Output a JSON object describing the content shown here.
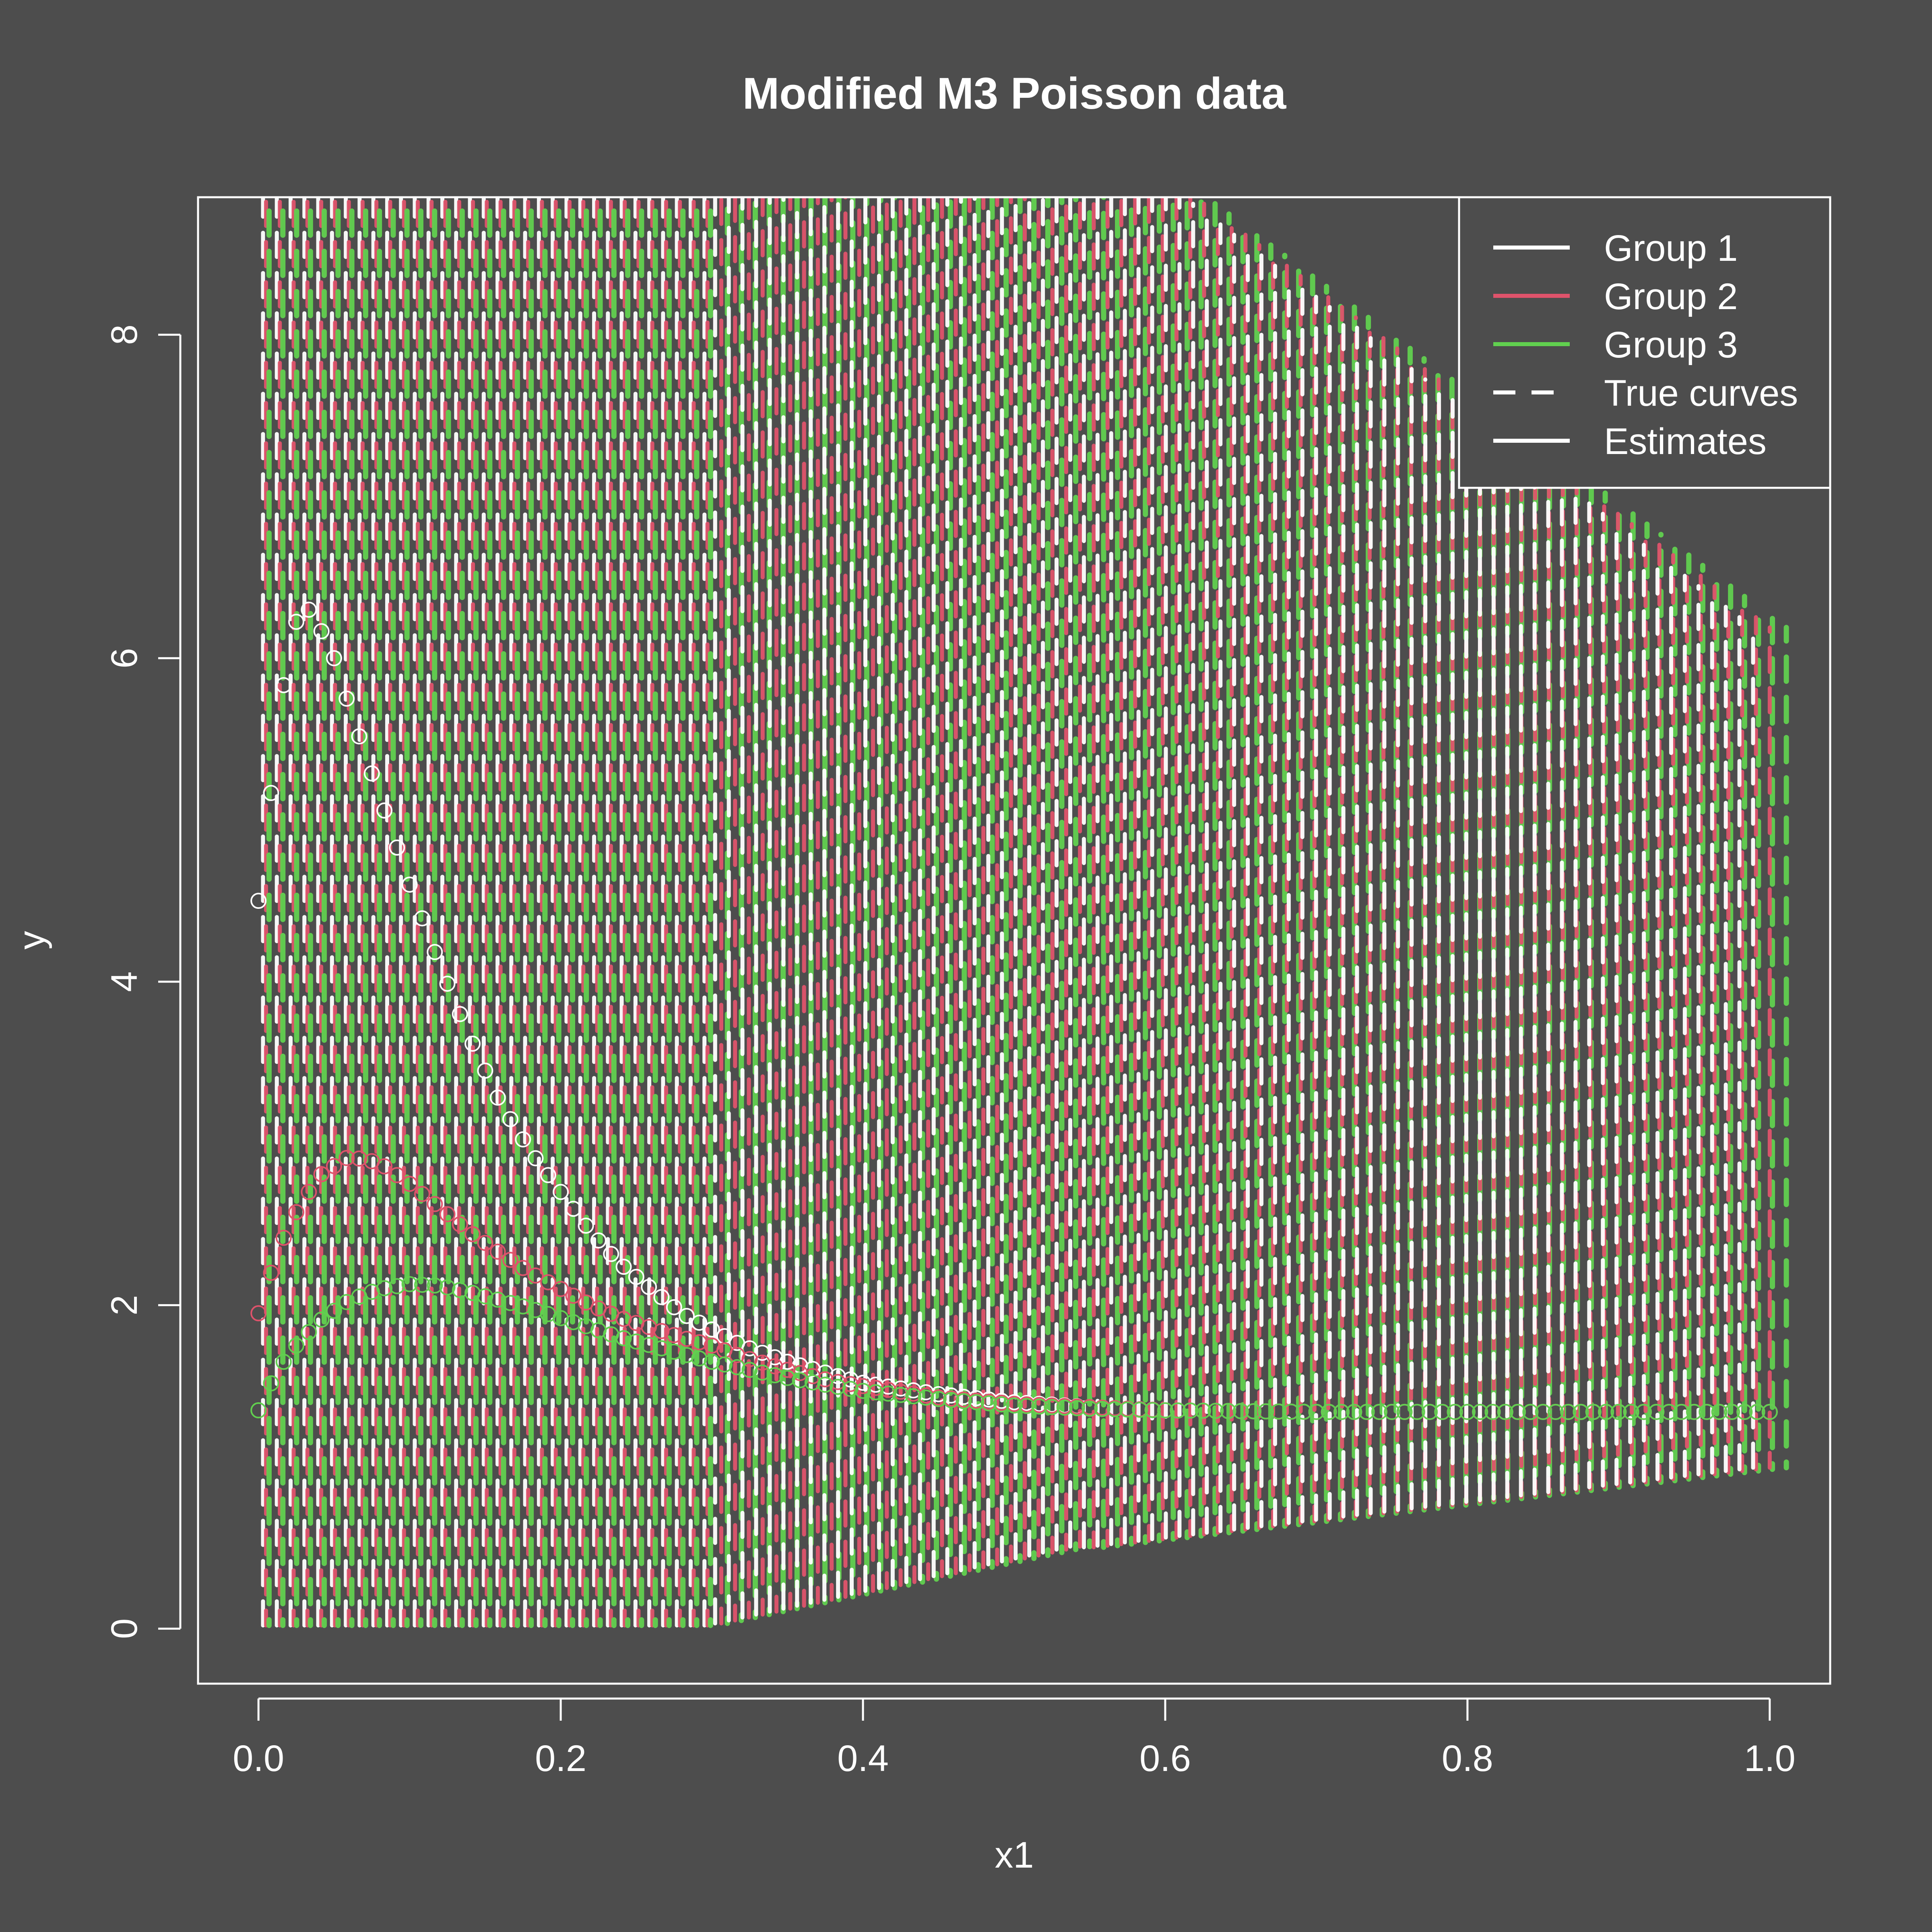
{
  "chart_data": {
    "type": "line",
    "title": "Modified M3 Poisson data",
    "xlabel": "x1",
    "ylabel": "y",
    "xlim": [
      -0.04,
      1.04
    ],
    "ylim": [
      -0.34,
      8.85
    ],
    "x_ticks": [
      0.0,
      0.2,
      0.4,
      0.6,
      0.8,
      1.0
    ],
    "x_tick_labels": [
      "0.0",
      "0.2",
      "0.4",
      "0.6",
      "0.8",
      "1.0"
    ],
    "y_ticks": [
      0,
      2,
      4,
      6,
      8
    ],
    "y_tick_labels": [
      "0",
      "2",
      "4",
      "6",
      "8"
    ],
    "grid": false,
    "legend_position": "top-right",
    "legend": [
      {
        "label": "Group 1",
        "color": "#ffffff",
        "dash": "solid"
      },
      {
        "label": "Group 2",
        "color": "#df536b",
        "dash": "solid"
      },
      {
        "label": "Group 3",
        "color": "#61d04f",
        "dash": "solid"
      },
      {
        "label": "True curves",
        "color": "#ffffff",
        "dash": "dashed"
      },
      {
        "label": "Estimates",
        "color": "#ffffff",
        "dash": "solid"
      }
    ],
    "series": [
      {
        "name": "Group 1",
        "color": "#ffffff",
        "marker": "open-circle",
        "x": [
          0.0,
          0.01,
          0.02,
          0.03,
          0.04,
          0.05,
          0.06,
          0.08,
          0.1,
          0.12,
          0.14,
          0.16,
          0.18,
          0.2,
          0.22,
          0.24,
          0.26,
          0.28,
          0.3,
          0.32,
          0.35,
          0.38,
          0.4,
          0.45,
          0.5,
          0.55,
          0.6,
          0.7,
          0.8,
          0.9,
          1.0
        ],
        "y": [
          4.5,
          5.3,
          6.1,
          6.35,
          6.2,
          6.0,
          5.7,
          5.15,
          4.6,
          4.1,
          3.65,
          3.25,
          2.95,
          2.7,
          2.45,
          2.25,
          2.1,
          1.95,
          1.85,
          1.75,
          1.65,
          1.57,
          1.52,
          1.45,
          1.4,
          1.37,
          1.35,
          1.34,
          1.34,
          1.34,
          1.34
        ]
      },
      {
        "name": "Group 2",
        "color": "#df536b",
        "marker": "open-circle",
        "x": [
          0.0,
          0.01,
          0.02,
          0.04,
          0.06,
          0.08,
          0.1,
          0.12,
          0.14,
          0.16,
          0.18,
          0.2,
          0.22,
          0.24,
          0.26,
          0.28,
          0.3,
          0.32,
          0.35,
          0.38,
          0.4,
          0.45,
          0.5,
          0.55,
          0.6,
          0.7,
          0.8,
          0.9,
          1.0
        ],
        "y": [
          1.95,
          2.25,
          2.5,
          2.8,
          2.92,
          2.88,
          2.75,
          2.6,
          2.45,
          2.32,
          2.2,
          2.1,
          2.0,
          1.92,
          1.86,
          1.8,
          1.75,
          1.68,
          1.6,
          1.53,
          1.5,
          1.43,
          1.39,
          1.37,
          1.35,
          1.34,
          1.34,
          1.34,
          1.34
        ]
      },
      {
        "name": "Group 3",
        "color": "#61d04f",
        "marker": "open-circle",
        "x": [
          0.0,
          0.01,
          0.02,
          0.04,
          0.06,
          0.08,
          0.1,
          0.12,
          0.14,
          0.16,
          0.18,
          0.2,
          0.22,
          0.24,
          0.26,
          0.28,
          0.3,
          0.32,
          0.35,
          0.38,
          0.4,
          0.45,
          0.5,
          0.55,
          0.6,
          0.7,
          0.8,
          0.9,
          1.0
        ],
        "y": [
          1.35,
          1.55,
          1.7,
          1.9,
          2.03,
          2.1,
          2.13,
          2.12,
          2.08,
          2.03,
          1.98,
          1.92,
          1.86,
          1.8,
          1.75,
          1.7,
          1.65,
          1.61,
          1.55,
          1.5,
          1.47,
          1.42,
          1.38,
          1.36,
          1.35,
          1.34,
          1.34,
          1.34,
          1.34
        ]
      }
    ]
  }
}
